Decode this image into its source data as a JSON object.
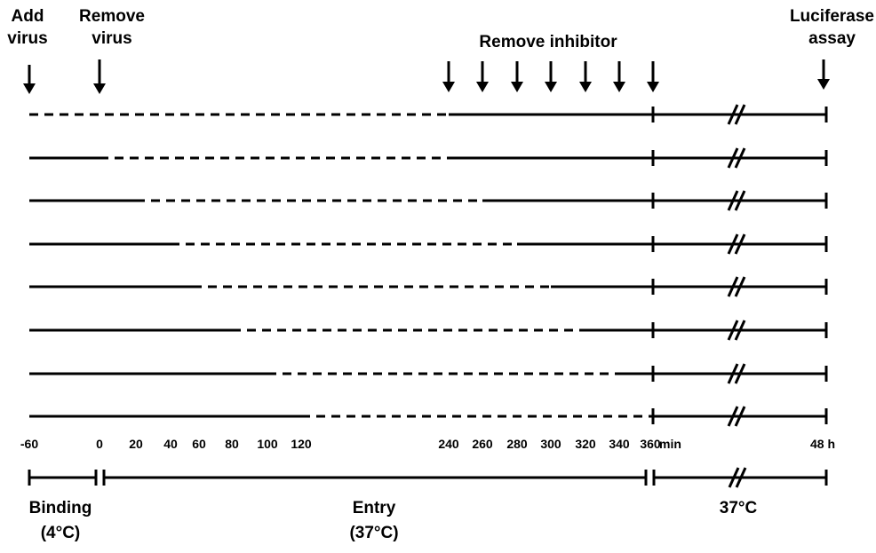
{
  "top_labels": {
    "add_virus": [
      "Add",
      "virus"
    ],
    "remove_virus": [
      "Remove",
      "virus"
    ],
    "remove_inhibitor": "Remove inhibitor",
    "luciferase_assay": [
      "Luciferase",
      "assay"
    ]
  },
  "time_ticks": [
    "-60",
    "0",
    "20",
    "40",
    "60",
    "80",
    "100",
    "120",
    "240",
    "260",
    "280",
    "300",
    "320",
    "340",
    "360",
    "min",
    "48 h"
  ],
  "bottom_labels": {
    "binding": [
      "Binding",
      "(4°C)"
    ],
    "entry": [
      "Entry",
      "(37°C)"
    ],
    "culture": "37°C"
  },
  "treatment_rows": [
    {
      "inhibitor_from": -60,
      "inhibitor_until": -60,
      "washout_at": 240
    },
    {
      "inhibitor_from": -60,
      "inhibitor_until": 0,
      "washout_at": 240
    },
    {
      "inhibitor_from": -60,
      "inhibitor_until": 20,
      "washout_at": 260
    },
    {
      "inhibitor_from": -60,
      "inhibitor_until": 40,
      "washout_at": 280
    },
    {
      "inhibitor_from": -60,
      "inhibitor_until": 60,
      "washout_at": 300
    },
    {
      "inhibitor_from": -60,
      "inhibitor_until": 80,
      "washout_at": 320
    },
    {
      "inhibitor_from": -60,
      "inhibitor_until": 100,
      "washout_at": 340
    },
    {
      "inhibitor_from": -60,
      "inhibitor_until": 120,
      "washout_at": 360
    }
  ],
  "colors": {
    "ink": "#000000",
    "background": "#ffffff"
  }
}
